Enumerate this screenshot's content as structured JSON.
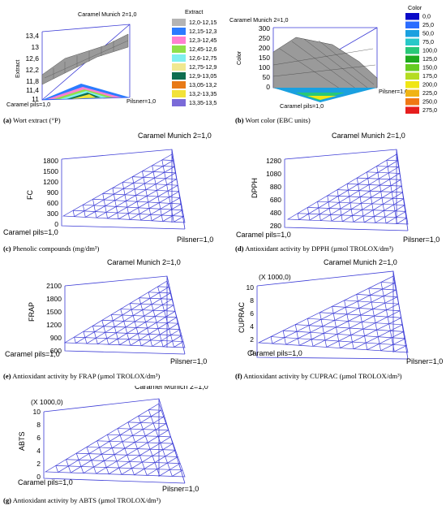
{
  "labels": {
    "top": "Caramel Munich 2=1,0",
    "left": "Caramel pils=1,0",
    "right": "Pilsner=1,0"
  },
  "charts": {
    "a": {
      "caption_letter": "(a)",
      "caption_text": "Wort extract (°P)",
      "ylabel": "Extract",
      "yticks": [
        "13,4",
        "13",
        "12,6",
        "12,2",
        "11,8",
        "11,4",
        "11"
      ],
      "legend_title": "Extract",
      "legend": [
        {
          "label": "12,0-12,15",
          "color": "#b4b4b4"
        },
        {
          "label": "12,15-12,3",
          "color": "#2b7bff"
        },
        {
          "label": "12,3-12,45",
          "color": "#ff7fd0"
        },
        {
          "label": "12,45-12,6",
          "color": "#8ee04a"
        },
        {
          "label": "12,6-12,75",
          "color": "#7ff0f0"
        },
        {
          "label": "12,75-12,9",
          "color": "#f0e890"
        },
        {
          "label": "12,9-13,05",
          "color": "#0e6e50"
        },
        {
          "label": "13,05-13,2",
          "color": "#e87a18"
        },
        {
          "label": "13,2-13,35",
          "color": "#f2e23a"
        },
        {
          "label": "13,35-13,5",
          "color": "#7a6ad8"
        }
      ]
    },
    "b": {
      "caption_letter": "(b)",
      "caption_text": "Wort color (EBC units)",
      "ylabel": "Color",
      "yticks": [
        "300",
        "250",
        "200",
        "150",
        "100",
        "50",
        "0"
      ],
      "legend_title": "Color",
      "legend": [
        {
          "label": "0,0",
          "color": "#0a0ac8"
        },
        {
          "label": "25,0",
          "color": "#2b6cff"
        },
        {
          "label": "50,0",
          "color": "#1aa0e0"
        },
        {
          "label": "75,0",
          "color": "#28c8c8"
        },
        {
          "label": "100,0",
          "color": "#28c878"
        },
        {
          "label": "125,0",
          "color": "#1eaa1e"
        },
        {
          "label": "150,0",
          "color": "#66cc22"
        },
        {
          "label": "175,0",
          "color": "#b4dc22"
        },
        {
          "label": "200,0",
          "color": "#f0e614"
        },
        {
          "label": "225,0",
          "color": "#f0b414"
        },
        {
          "label": "250,0",
          "color": "#f07814"
        },
        {
          "label": "275,0",
          "color": "#e61e1e"
        }
      ]
    },
    "c": {
      "caption_letter": "(c)",
      "caption_text": "Phenolic compounds (mg/dm³)",
      "ylabel": "FC",
      "yticks": [
        "1800",
        "1500",
        "1200",
        "900",
        "600",
        "300",
        "0"
      ]
    },
    "d": {
      "caption_letter": "(d)",
      "caption_text": "Antioxidant activity by DPPH (µmol TROLOX/dm³)",
      "ylabel": "DPPH",
      "yticks": [
        "1280",
        "1080",
        "880",
        "680",
        "480",
        "280"
      ]
    },
    "e": {
      "caption_letter": "(e)",
      "caption_text": "Antioxidant activity by FRAP (µmol TROLOX/dm³)",
      "ylabel": "FRAP",
      "yticks": [
        "2100",
        "1800",
        "1500",
        "1200",
        "900",
        "600"
      ]
    },
    "f": {
      "caption_letter": "(f)",
      "caption_text": "Antioxidant activity by CUPRAC (µmol TROLOX/dm³)",
      "ylabel": "CUPRAC",
      "multiplier": "(X 1000,0)",
      "yticks": [
        "10",
        "8",
        "6",
        "4",
        "2",
        "0"
      ]
    },
    "g": {
      "caption_letter": "(g)",
      "caption_text": "Antioxidant activity by ABTS (µmol TROLOX/dm³)",
      "ylabel": "ABTS",
      "multiplier": "(X 1000,0)",
      "yticks": [
        "10",
        "8",
        "6",
        "4",
        "2",
        "0"
      ]
    }
  },
  "chart_data": [
    {
      "type": "other",
      "panel": "a",
      "ylabel": "Extract",
      "ylim": [
        11,
        13.4
      ],
      "corners": [
        "Caramel Munich 2=1,0",
        "Caramel pils=1,0",
        "Pilsner=1,0"
      ]
    },
    {
      "type": "other",
      "panel": "b",
      "ylabel": "Color",
      "ylim": [
        0,
        300
      ],
      "corners": [
        "Caramel Munich 2=1,0",
        "Caramel pils=1,0",
        "Pilsner=1,0"
      ]
    },
    {
      "type": "other",
      "panel": "c",
      "ylabel": "FC",
      "ylim": [
        0,
        1800
      ],
      "corners": [
        "Caramel Munich 2=1,0",
        "Caramel pils=1,0",
        "Pilsner=1,0"
      ]
    },
    {
      "type": "other",
      "panel": "d",
      "ylabel": "DPPH",
      "ylim": [
        280,
        1280
      ],
      "corners": [
        "Caramel Munich 2=1,0",
        "Caramel pils=1,0",
        "Pilsner=1,0"
      ]
    },
    {
      "type": "other",
      "panel": "e",
      "ylabel": "FRAP",
      "ylim": [
        600,
        2100
      ],
      "corners": [
        "Caramel Munich 2=1,0",
        "Caramel pils=1,0",
        "Pilsner=1,0"
      ]
    },
    {
      "type": "other",
      "panel": "f",
      "ylabel": "CUPRAC",
      "ylim": [
        0,
        10000
      ],
      "corners": [
        "Caramel Munich 2=1,0",
        "Caramel pils=1,0",
        "Pilsner=1,0"
      ]
    },
    {
      "type": "other",
      "panel": "g",
      "ylabel": "ABTS",
      "ylim": [
        0,
        10000
      ],
      "corners": [
        "Caramel Munich 2=1,0",
        "Caramel pils=1,0",
        "Pilsner=1,0"
      ]
    }
  ]
}
